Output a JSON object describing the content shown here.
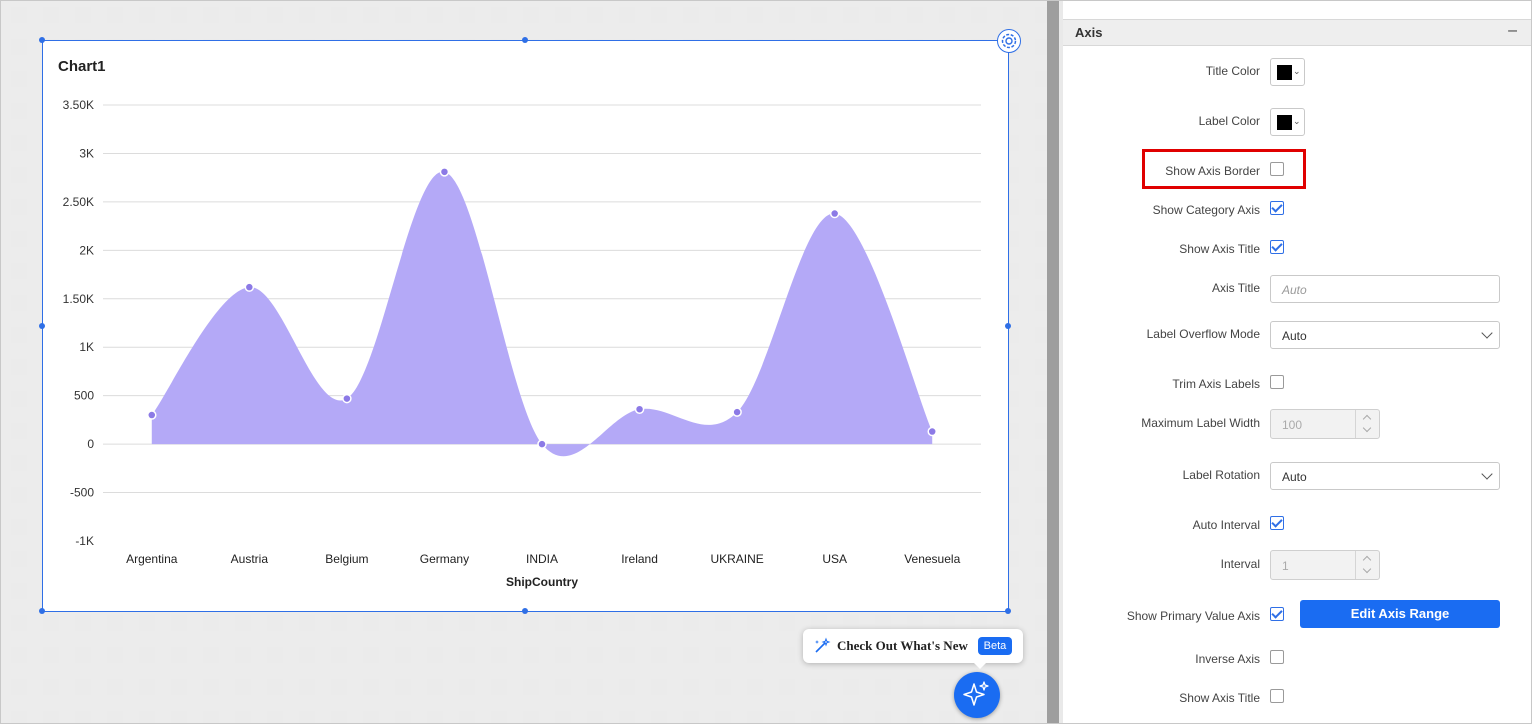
{
  "chart": {
    "title": "Chart1"
  },
  "chart_data": {
    "type": "area",
    "title": "Chart1",
    "xlabel": "ShipCountry",
    "ylabel": "",
    "categories": [
      "Argentina",
      "Austria",
      "Belgium",
      "Germany",
      "INDIA",
      "Ireland",
      "UKRAINE",
      "USA",
      "Venesuela"
    ],
    "series": [
      {
        "values": [
          300,
          1620,
          470,
          2810,
          0,
          360,
          330,
          2380,
          130
        ]
      }
    ],
    "ylim": [
      -1000,
      3500
    ],
    "yticks": [
      "3.50K",
      "3K",
      "2.50K",
      "2K",
      "1.50K",
      "1K",
      "500",
      "0",
      "-500",
      "-1K"
    ],
    "ytick_values": [
      3500,
      3000,
      2500,
      2000,
      1500,
      1000,
      500,
      0,
      -500,
      -1000
    ],
    "grid": true,
    "color": "#b4a9f7",
    "marker_color": "#8c7ae6"
  },
  "panel": {
    "section_title": "Axis",
    "collapse_symbol": "–",
    "title_color_label": "Title Color",
    "label_color_label": "Label Color",
    "show_axis_border_label": "Show Axis Border",
    "show_category_axis_label": "Show Category Axis",
    "show_axis_title_label": "Show Axis Title",
    "axis_title_label": "Axis Title",
    "axis_title_placeholder": "Auto",
    "label_overflow_label": "Label Overflow Mode",
    "label_overflow_value": "Auto",
    "trim_axis_labels_label": "Trim Axis Labels",
    "max_label_width_label": "Maximum Label Width",
    "max_label_width_value": "100",
    "label_rotation_label": "Label Rotation",
    "label_rotation_value": "Auto",
    "auto_interval_label": "Auto Interval",
    "interval_label": "Interval",
    "interval_value": "1",
    "show_primary_value_axis_label": "Show Primary Value Axis",
    "edit_axis_range_label": "Edit Axis Range",
    "inverse_axis_label": "Inverse Axis",
    "show_axis_title_2_label": "Show Axis Title"
  },
  "popup": {
    "text": "Check Out What's New",
    "badge": "Beta"
  },
  "colors": {
    "accent": "#1a6cf2",
    "highlight": "#e00000"
  }
}
